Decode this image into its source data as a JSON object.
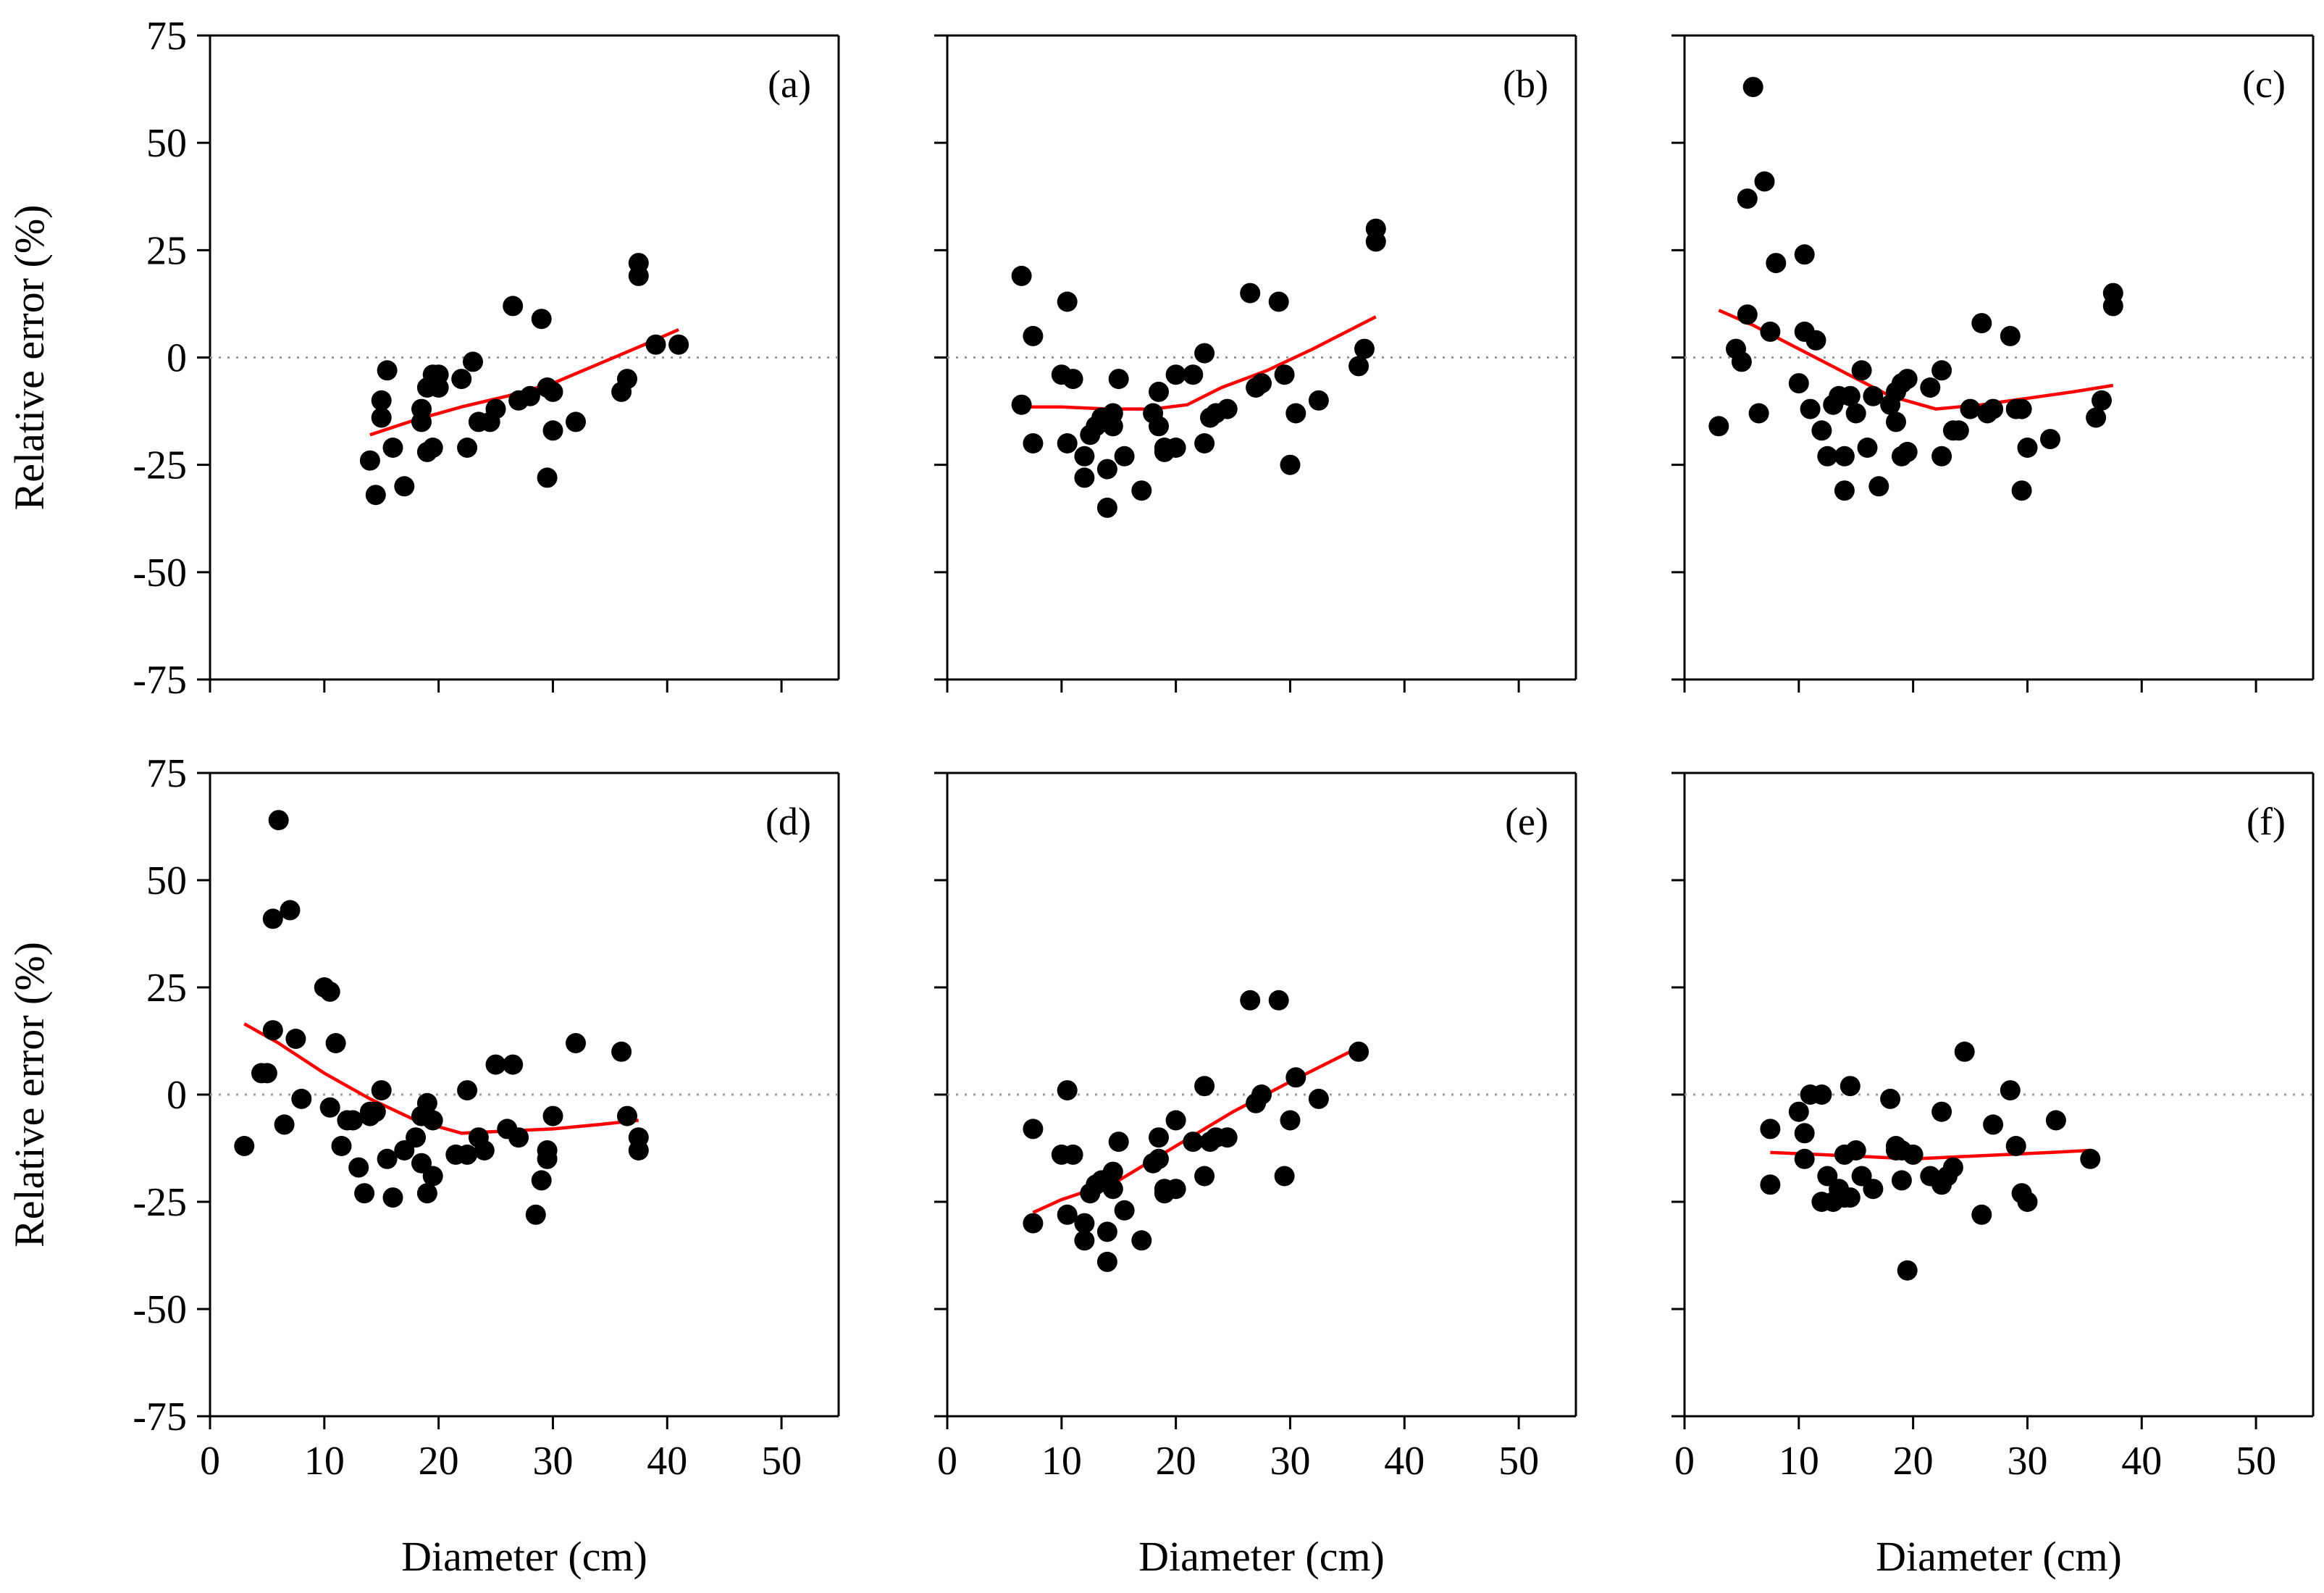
{
  "figure": {
    "xlabel": "Diameter (cm)",
    "ylabel": "Relative error (%)"
  },
  "colors": {
    "points": "#000000",
    "trend": "#ff0000",
    "zero_line": "#999999"
  },
  "chart_data": [
    {
      "type": "scatter",
      "label": "(a)",
      "xlim": [
        0,
        55
      ],
      "ylim": [
        -75,
        75
      ],
      "xticks": [
        "0",
        "10",
        "20",
        "30",
        "40",
        "50"
      ],
      "yticks": [
        "75",
        "50",
        "25",
        "0",
        "-25",
        "-50",
        "-75"
      ],
      "x": [
        14,
        14.5,
        15,
        15,
        15.5,
        16,
        17,
        18.5,
        18.5,
        19,
        19,
        19.5,
        19.5,
        20,
        20,
        22,
        22.5,
        23,
        23.5,
        24.5,
        25,
        26.5,
        27,
        28,
        29,
        29.5,
        29.5,
        30,
        30,
        32,
        36,
        36.5,
        37.5,
        37.5,
        39,
        41
      ],
      "y": [
        -24,
        -32,
        -10,
        -14,
        -3,
        -21,
        -30,
        -12,
        -15,
        -7,
        -22,
        -4,
        -21,
        -7,
        -4,
        -5,
        -21,
        -1,
        -15,
        -15,
        -12,
        12,
        -10,
        -9,
        9,
        -28,
        -7,
        -8,
        -17,
        -15,
        -8,
        -5,
        22,
        19,
        3,
        3
      ],
      "trend_x": [
        14,
        18,
        22,
        26,
        30,
        34,
        38,
        41
      ],
      "trend_y": [
        -18,
        -14.5,
        -11.5,
        -9,
        -6,
        -1.5,
        3,
        6.5
      ]
    },
    {
      "type": "scatter",
      "label": "(b)",
      "xlim": [
        0,
        55
      ],
      "ylim": [
        -75,
        75
      ],
      "xticks": [
        "0",
        "10",
        "20",
        "30",
        "40",
        "50"
      ],
      "yticks": [
        "75",
        "50",
        "25",
        "0",
        "-25",
        "-50",
        "-75"
      ],
      "x": [
        6.5,
        6.5,
        7.5,
        7.5,
        10,
        10.5,
        10.5,
        11,
        12,
        12,
        12.5,
        13,
        13.5,
        14,
        14,
        14.5,
        14.5,
        15,
        15.5,
        17,
        18,
        18.5,
        18.5,
        19,
        19,
        20,
        20,
        21.5,
        22.5,
        22.5,
        23,
        23.5,
        24.5,
        26.5,
        27,
        27.5,
        29,
        29.5,
        30,
        30.5,
        32.5,
        36,
        36.5,
        37.5,
        37.5
      ],
      "y": [
        19,
        -11,
        5,
        -20,
        -4,
        13,
        -20,
        -5,
        -23,
        -28,
        -18,
        -16,
        -14,
        -26,
        -35,
        -16,
        -13,
        -5,
        -23,
        -31,
        -13,
        -16,
        -8,
        -21,
        -22,
        -4,
        -21,
        -4,
        1,
        -20,
        -14,
        -13,
        -12,
        15,
        -7,
        -6,
        13,
        -4,
        -25,
        -13,
        -10,
        -2,
        2,
        27,
        30
      ],
      "trend_x": [
        7,
        10,
        14,
        18,
        21,
        24,
        28,
        32,
        37.5
      ],
      "trend_y": [
        -11.5,
        -11.5,
        -12,
        -12,
        -11,
        -7,
        -3,
        2,
        9.5
      ]
    },
    {
      "type": "scatter",
      "label": "(c)",
      "xlim": [
        0,
        55
      ],
      "ylim": [
        -75,
        75
      ],
      "xticks": [
        "0",
        "10",
        "20",
        "30",
        "40",
        "50"
      ],
      "yticks": [
        "75",
        "50",
        "25",
        "0",
        "-25",
        "-50",
        "-75"
      ],
      "x": [
        3,
        4.5,
        5,
        5.5,
        5.5,
        6,
        6.5,
        7,
        7.5,
        8,
        10,
        10.5,
        10.5,
        11,
        11.5,
        12,
        12.5,
        13,
        13.5,
        14,
        14,
        14.5,
        15,
        15.5,
        16,
        16.5,
        17,
        18,
        18.5,
        18.5,
        19,
        19,
        19.5,
        19.5,
        21.5,
        22.5,
        22.5,
        23.5,
        24,
        25,
        26,
        26.5,
        27,
        28.5,
        29,
        29.5,
        29.5,
        30,
        32,
        36,
        36.5,
        37.5,
        37.5
      ],
      "y": [
        -16,
        2,
        -1,
        10,
        37,
        63,
        -13,
        41,
        6,
        22,
        -6,
        6,
        24,
        -12,
        4,
        -17,
        -23,
        -11,
        -9,
        -31,
        -23,
        -9,
        -13,
        -3,
        -21,
        -9,
        -30,
        -11,
        -15,
        -8,
        -23,
        -6,
        -22,
        -5,
        -7,
        -3,
        -23,
        -17,
        -17,
        -12,
        8,
        -13,
        -12,
        5,
        -12,
        -31,
        -12,
        -21,
        -19,
        -14,
        -10,
        15,
        12
      ],
      "trend_x": [
        3,
        6,
        10,
        14,
        18,
        22,
        26,
        30,
        34,
        37.5
      ],
      "trend_y": [
        11,
        7.5,
        2,
        -3.5,
        -9,
        -12,
        -11,
        -9.5,
        -8,
        -6.5
      ]
    },
    {
      "type": "scatter",
      "label": "(d)",
      "xlim": [
        0,
        55
      ],
      "ylim": [
        -75,
        75
      ],
      "xticks": [
        "0",
        "10",
        "20",
        "30",
        "40",
        "50"
      ],
      "yticks": [
        "75",
        "50",
        "25",
        "0",
        "-25",
        "-50",
        "-75"
      ],
      "x": [
        3,
        4.5,
        5,
        5.5,
        5.5,
        6,
        6.5,
        7,
        7.5,
        8,
        10,
        10.5,
        10.5,
        11,
        11.5,
        12,
        12.5,
        13,
        13.5,
        14,
        14,
        14.5,
        15,
        15.5,
        16,
        17,
        18,
        18.5,
        18.5,
        19,
        19,
        19.5,
        19.5,
        21.5,
        22.5,
        22.5,
        23.5,
        24,
        25,
        26,
        26.5,
        27,
        28.5,
        29,
        29.5,
        29.5,
        30,
        32,
        36,
        36.5,
        37.5,
        37.5
      ],
      "y": [
        -12,
        5,
        5,
        15,
        41,
        64,
        -7,
        43,
        13,
        -1,
        25,
        -3,
        24,
        12,
        -12,
        -6,
        -6,
        -17,
        -23,
        -5,
        -4,
        -4,
        1,
        -15,
        -24,
        -13,
        -10,
        -5,
        -16,
        -23,
        -2,
        -6,
        -19,
        -14,
        1,
        -14,
        -10,
        -13,
        7,
        -8,
        7,
        -10,
        -28,
        -20,
        -15,
        -13,
        -5,
        12,
        10,
        -5,
        -10,
        -13
      ],
      "trend_x": [
        3,
        6,
        10,
        14,
        18,
        22,
        26,
        30,
        34,
        37.5
      ],
      "trend_y": [
        16.5,
        12,
        5,
        -1,
        -6,
        -9,
        -8.5,
        -8,
        -7,
        -6
      ]
    },
    {
      "type": "scatter",
      "label": "(e)",
      "xlim": [
        0,
        55
      ],
      "ylim": [
        -75,
        75
      ],
      "xticks": [
        "0",
        "10",
        "20",
        "30",
        "40",
        "50"
      ],
      "yticks": [
        "75",
        "50",
        "25",
        "0",
        "-25",
        "-50",
        "-75"
      ],
      "x": [
        7.5,
        7.5,
        10,
        10.5,
        10.5,
        11,
        12,
        12,
        12.5,
        13,
        13.5,
        14,
        14,
        14.5,
        14.5,
        15,
        15.5,
        17,
        18,
        18.5,
        18.5,
        19,
        19,
        20,
        20,
        21.5,
        22.5,
        22.5,
        23,
        23.5,
        24.5,
        26.5,
        27,
        27.5,
        29,
        29.5,
        30,
        30.5,
        32.5,
        36
      ],
      "y": [
        -30,
        -8,
        -14,
        1,
        -28,
        -14,
        -30,
        -34,
        -23,
        -21,
        -20,
        -39,
        -32,
        -18,
        -22,
        -11,
        -27,
        -34,
        -16,
        -10,
        -15,
        -23,
        -22,
        -6,
        -22,
        -11,
        -19,
        2,
        -11,
        -10,
        -10,
        22,
        -2,
        0,
        22,
        -19,
        -6,
        4,
        -1,
        10
      ],
      "trend_x": [
        7.5,
        10,
        15,
        20,
        25,
        30,
        36
      ],
      "trend_y": [
        -27.5,
        -24.5,
        -20,
        -12,
        -4,
        3,
        11
      ]
    },
    {
      "type": "scatter",
      "label": "(f)",
      "xlim": [
        0,
        55
      ],
      "ylim": [
        -75,
        75
      ],
      "xticks": [
        "0",
        "10",
        "20",
        "30",
        "40",
        "50"
      ],
      "yticks": [
        "75",
        "50",
        "25",
        "0",
        "-25",
        "-50",
        "-75"
      ],
      "x": [
        7.5,
        7.5,
        10,
        10.5,
        10.5,
        11,
        12,
        12,
        12.5,
        13,
        13.5,
        14,
        14,
        14.5,
        14.5,
        15,
        15.5,
        16.5,
        18,
        18.5,
        18.5,
        19,
        19,
        19.5,
        20,
        21.5,
        22.5,
        22.5,
        23,
        23.5,
        24.5,
        26,
        27,
        28.5,
        29,
        29.5,
        30,
        32.5,
        35.5
      ],
      "y": [
        -21,
        -8,
        -4,
        -9,
        -15,
        0,
        -25,
        0,
        -19,
        -25,
        -22,
        -24,
        -14,
        -24,
        2,
        -13,
        -19,
        -22,
        -1,
        -12,
        -13,
        -20,
        -13,
        -41,
        -14,
        -19,
        -4,
        -21,
        -19,
        -17,
        10,
        -28,
        -7,
        1,
        -12,
        -23,
        -25,
        -6,
        -15
      ],
      "trend_x": [
        7.5,
        12,
        16,
        20,
        24,
        28,
        32,
        35.5
      ],
      "trend_y": [
        -13.5,
        -14,
        -14.5,
        -15,
        -14.5,
        -14,
        -13.5,
        -13
      ]
    }
  ]
}
